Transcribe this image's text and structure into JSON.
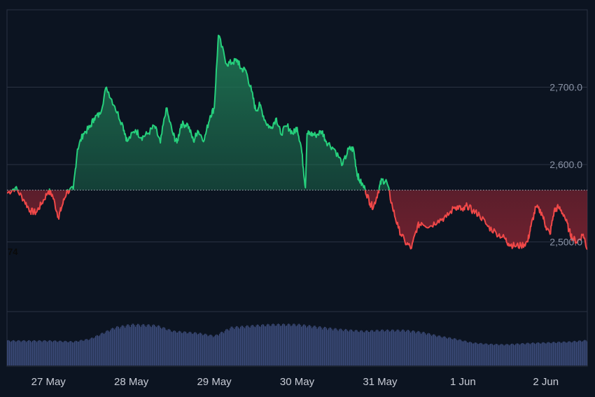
{
  "colors": {
    "background": "#0c1421",
    "grid": "#2a3242",
    "up_line": "#26d07c",
    "down_line": "#f04848",
    "up_fill": "#1f7a55",
    "down_fill": "#7a2230",
    "volume": "#3b4a78",
    "baseline": "#c8ccd6"
  },
  "side_label": "74",
  "chart_data": {
    "type": "area",
    "baseline": 2567,
    "ylim": [
      2410,
      2800
    ],
    "y_ticks": [
      2500,
      2600,
      2700
    ],
    "y_tick_labels": [
      "2,500.0",
      "2,600.0",
      "2,700.0"
    ],
    "x_ticks": [
      0.5,
      1.5,
      2.5,
      3.5,
      4.5,
      5.5,
      6.5
    ],
    "x_tick_labels": [
      "27 May",
      "28 May",
      "29 May",
      "30 May",
      "31 May",
      "1 Jun",
      "2 Jun"
    ],
    "xlim": [
      0,
      7
    ],
    "grid": true,
    "price": {
      "x": [
        0.0,
        0.1,
        0.2,
        0.28,
        0.35,
        0.42,
        0.5,
        0.55,
        0.62,
        0.66,
        0.72,
        0.8,
        0.85,
        0.92,
        1.0,
        1.05,
        1.12,
        1.2,
        1.3,
        1.4,
        1.45,
        1.55,
        1.62,
        1.7,
        1.78,
        1.85,
        1.92,
        2.0,
        2.05,
        2.1,
        2.18,
        2.25,
        2.3,
        2.38,
        2.45,
        2.5,
        2.55,
        2.65,
        2.72,
        2.78,
        2.82,
        2.88,
        2.95,
        3.0,
        3.05,
        3.12,
        3.18,
        3.25,
        3.3,
        3.38,
        3.45,
        3.5,
        3.55,
        3.6,
        3.62,
        3.66,
        3.72,
        3.8,
        3.85,
        3.95,
        4.05,
        4.12,
        4.18,
        4.22,
        4.25,
        4.32,
        4.38,
        4.42,
        4.48,
        4.52,
        4.58,
        4.65,
        4.72,
        4.8,
        4.88,
        4.95,
        5.0,
        5.1,
        5.2,
        5.3,
        5.4,
        5.45,
        5.5,
        5.55,
        5.62,
        5.7,
        5.8,
        5.9,
        6.0,
        6.05,
        6.12,
        6.2,
        6.28,
        6.32,
        6.38,
        6.45,
        6.5,
        6.55,
        6.6,
        6.65,
        6.72,
        6.78,
        6.82,
        6.88,
        6.95,
        7.0
      ],
      "y": [
        2563,
        2570,
        2555,
        2540,
        2538,
        2550,
        2566,
        2560,
        2532,
        2545,
        2565,
        2568,
        2620,
        2640,
        2648,
        2660,
        2665,
        2700,
        2675,
        2650,
        2630,
        2645,
        2635,
        2640,
        2650,
        2628,
        2673,
        2640,
        2628,
        2652,
        2652,
        2630,
        2644,
        2632,
        2663,
        2673,
        2767,
        2730,
        2732,
        2735,
        2724,
        2722,
        2695,
        2670,
        2677,
        2655,
        2647,
        2660,
        2640,
        2650,
        2640,
        2648,
        2622,
        2570,
        2640,
        2640,
        2638,
        2643,
        2630,
        2620,
        2600,
        2620,
        2620,
        2590,
        2580,
        2568,
        2550,
        2545,
        2566,
        2580,
        2578,
        2545,
        2518,
        2500,
        2492,
        2520,
        2525,
        2520,
        2528,
        2532,
        2545,
        2545,
        2540,
        2547,
        2540,
        2535,
        2520,
        2512,
        2505,
        2498,
        2495,
        2495,
        2500,
        2520,
        2545,
        2538,
        2520,
        2510,
        2540,
        2545,
        2535,
        2515,
        2505,
        2500,
        2510,
        2490
      ]
    },
    "volume": {
      "x": [
        0.0,
        0.5,
        0.8,
        1.0,
        1.3,
        1.5,
        1.8,
        2.0,
        2.3,
        2.5,
        2.7,
        3.0,
        3.2,
        3.5,
        3.8,
        4.0,
        4.3,
        4.5,
        4.8,
        5.0,
        5.2,
        5.4,
        5.6,
        5.8,
        6.0,
        6.3,
        6.5,
        6.8,
        7.0
      ],
      "v": [
        0.52,
        0.52,
        0.5,
        0.56,
        0.8,
        0.86,
        0.84,
        0.72,
        0.68,
        0.62,
        0.8,
        0.84,
        0.86,
        0.86,
        0.8,
        0.76,
        0.72,
        0.74,
        0.74,
        0.7,
        0.62,
        0.56,
        0.48,
        0.45,
        0.44,
        0.47,
        0.48,
        0.5,
        0.53
      ]
    }
  }
}
